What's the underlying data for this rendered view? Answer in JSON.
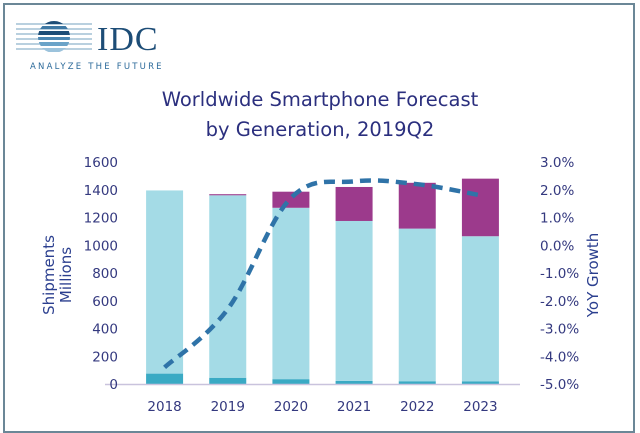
{
  "logo": {
    "brand": "IDC",
    "tagline": "ANALYZE THE FUTURE",
    "icon": "globe-stripes-icon"
  },
  "chart_data": {
    "type": "bar",
    "stacked": true,
    "title": "Worldwide Smartphone Forecast",
    "subtitle": "by Generation, 2019Q2",
    "categories": [
      "2018",
      "2019",
      "2020",
      "2021",
      "2022",
      "2023"
    ],
    "series": [
      {
        "name": "Bottom segment (dark teal)",
        "color": "#3aaac4",
        "values": [
          75,
          45,
          35,
          22,
          20,
          18
        ]
      },
      {
        "name": "Middle segment (light blue)",
        "color": "#a4dbe6",
        "values": [
          1320,
          1315,
          1235,
          1153,
          1100,
          1047
        ]
      },
      {
        "name": "Top segment (purple)",
        "color": "#9c3a8c",
        "values": [
          0,
          8,
          116,
          245,
          330,
          415
        ]
      }
    ],
    "line_series": {
      "name": "YoY Growth",
      "axis": "right",
      "color": "#2f73a8",
      "style": "dashed",
      "values": [
        -4.4,
        -2.3,
        1.7,
        2.3,
        2.2,
        1.8
      ]
    },
    "ylabel": "Shipments\nMillions",
    "ylabel_lines": [
      "Shipments",
      "Millions"
    ],
    "y2label": "YoY Growth",
    "ylim": [
      0,
      1600
    ],
    "yticks": [
      0,
      200,
      400,
      600,
      800,
      1000,
      1200,
      1400,
      1600
    ],
    "ytick_labels": [
      "0",
      "200",
      "400",
      "600",
      "800",
      "1000",
      "1200",
      "1400",
      "1600"
    ],
    "y2lim": [
      -5.0,
      3.0
    ],
    "y2ticks": [
      -5,
      -4,
      -3,
      -2,
      -1,
      0,
      1,
      2,
      3
    ],
    "y2tick_labels": [
      "-5.0%",
      "-4.0%",
      "-3.0%",
      "-2.0%",
      "-1.0%",
      "0.0%",
      "1.0%",
      "2.0%",
      "3.0%"
    ],
    "grid": false,
    "legend": "none",
    "axis_color": "#c9c3dd",
    "tick_color": "#34397f"
  }
}
